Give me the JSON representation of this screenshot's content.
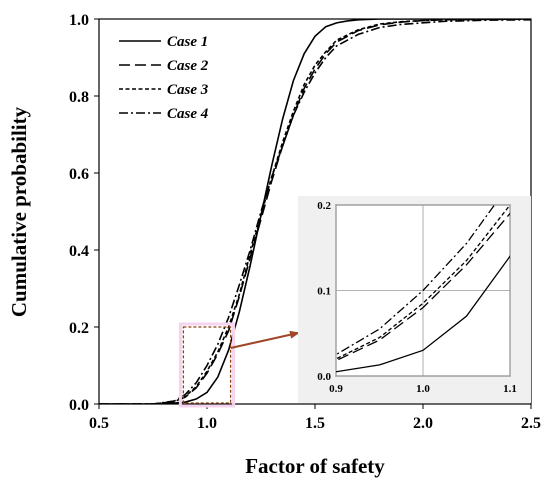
{
  "chart_data": [
    {
      "type": "line",
      "title": "",
      "xlabel": "Factor of safety",
      "ylabel": "Cumulative probability",
      "xlim": [
        0.5,
        2.5
      ],
      "ylim": [
        0.0,
        1.0
      ],
      "xticks": [
        "0.5",
        "1.0",
        "1.5",
        "2.0",
        "2.5"
      ],
      "yticks": [
        "0.0",
        "0.2",
        "0.4",
        "0.6",
        "0.8",
        "1.0"
      ],
      "grid": false,
      "legend_position": "top-left",
      "series": [
        {
          "name": "Case 1",
          "line_style": "solid",
          "x": [
            0.5,
            0.8,
            0.9,
            0.95,
            1.0,
            1.05,
            1.1,
            1.15,
            1.2,
            1.25,
            1.3,
            1.35,
            1.4,
            1.45,
            1.5,
            1.55,
            1.6,
            1.65,
            1.7,
            1.8,
            1.9,
            2.0,
            2.5
          ],
          "values": [
            0.0,
            0.0,
            0.005,
            0.013,
            0.03,
            0.07,
            0.14,
            0.24,
            0.36,
            0.49,
            0.62,
            0.74,
            0.84,
            0.91,
            0.955,
            0.98,
            0.99,
            0.995,
            0.998,
            1.0,
            1.0,
            1.0,
            1.0
          ]
        },
        {
          "name": "Case 2",
          "line_style": "long-dash",
          "x": [
            0.5,
            0.75,
            0.85,
            0.9,
            0.95,
            1.0,
            1.05,
            1.1,
            1.15,
            1.2,
            1.25,
            1.3,
            1.35,
            1.4,
            1.45,
            1.5,
            1.55,
            1.6,
            1.7,
            1.8,
            1.9,
            2.0,
            2.1,
            2.3,
            2.5
          ],
          "values": [
            0.0,
            0.0,
            0.006,
            0.018,
            0.042,
            0.08,
            0.13,
            0.19,
            0.28,
            0.38,
            0.48,
            0.58,
            0.67,
            0.75,
            0.82,
            0.87,
            0.91,
            0.94,
            0.97,
            0.985,
            0.992,
            0.996,
            0.998,
            0.999,
            1.0
          ]
        },
        {
          "name": "Case 3",
          "line_style": "short-dash",
          "x": [
            0.5,
            0.75,
            0.85,
            0.9,
            0.95,
            1.0,
            1.05,
            1.1,
            1.15,
            1.2,
            1.25,
            1.3,
            1.35,
            1.4,
            1.45,
            1.5,
            1.55,
            1.6,
            1.7,
            1.8,
            1.9,
            2.0,
            2.1,
            2.3,
            2.5
          ],
          "values": [
            0.0,
            0.0,
            0.006,
            0.02,
            0.045,
            0.085,
            0.135,
            0.2,
            0.285,
            0.39,
            0.49,
            0.59,
            0.68,
            0.76,
            0.83,
            0.88,
            0.915,
            0.945,
            0.972,
            0.987,
            0.993,
            0.996,
            0.998,
            0.999,
            1.0
          ]
        },
        {
          "name": "Case 4",
          "line_style": "dash-dot",
          "x": [
            0.5,
            0.75,
            0.85,
            0.9,
            0.95,
            1.0,
            1.05,
            1.1,
            1.15,
            1.2,
            1.25,
            1.3,
            1.35,
            1.4,
            1.45,
            1.5,
            1.55,
            1.6,
            1.7,
            1.8,
            1.9,
            2.0,
            2.1,
            2.3,
            2.5
          ],
          "values": [
            0.0,
            0.0,
            0.008,
            0.025,
            0.055,
            0.1,
            0.155,
            0.225,
            0.31,
            0.4,
            0.5,
            0.59,
            0.67,
            0.75,
            0.81,
            0.86,
            0.9,
            0.93,
            0.96,
            0.978,
            0.986,
            0.99,
            0.994,
            0.997,
            0.998
          ]
        }
      ],
      "zoom_box": {
        "xlim": [
          0.9,
          1.1
        ],
        "ylim": [
          0.0,
          0.2
        ],
        "box_color": "#8B4513",
        "arrow_color": "#A0472A"
      }
    },
    {
      "type": "line",
      "title": "",
      "xlabel": "",
      "ylabel": "",
      "xlim": [
        0.9,
        1.1
      ],
      "ylim": [
        0.0,
        0.2
      ],
      "xticks": [
        "0.9",
        "1.0",
        "1.1"
      ],
      "yticks": [
        "0.0",
        "0.1",
        "0.2"
      ],
      "grid": true,
      "background": "#f0f0f0",
      "series_from_main": true
    }
  ]
}
